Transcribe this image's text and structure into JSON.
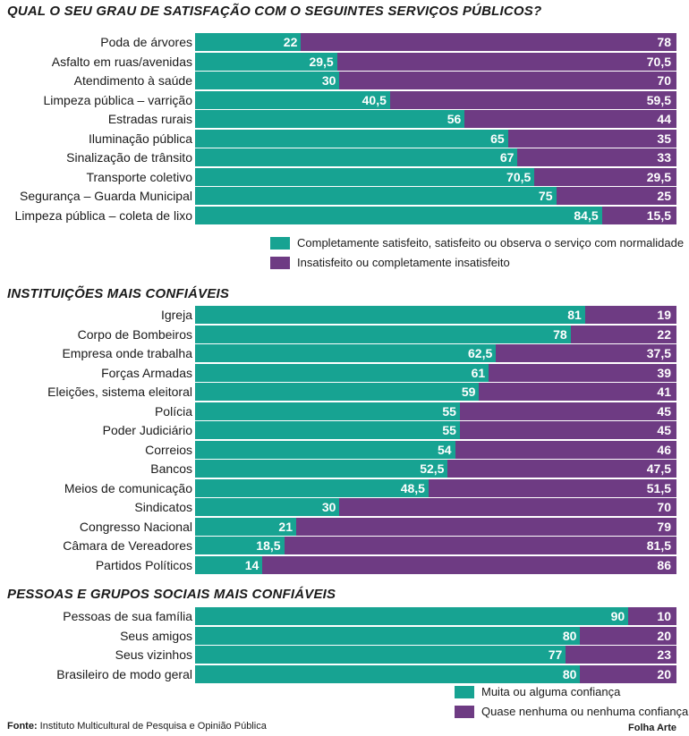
{
  "colors": {
    "satisfied": "#17a392",
    "unsatisfied": "#6e3b83"
  },
  "chart_data": [
    {
      "type": "bar",
      "orientation": "horizontal",
      "stacked": true,
      "title": "QUAL O SEU GRAU DE SATISFAÇÃO COM O SEGUINTES SERVIÇOS PÚBLICOS?",
      "categories": [
        "Poda de árvores",
        "Asfalto em ruas/avenidas",
        "Atendimento à saúde",
        "Limpeza pública – varrição",
        "Estradas rurais",
        "Iluminação pública",
        "Sinalização de trânsito",
        "Transporte coletivo",
        "Segurança – Guarda Municipal",
        "Limpeza pública – coleta de lixo"
      ],
      "series": [
        {
          "name": "Completamente satisfeito, satisfeito ou observa o serviço com normalidade",
          "values": [
            22,
            29.5,
            30,
            40.5,
            56,
            65,
            67,
            70.5,
            75,
            84.5
          ]
        },
        {
          "name": "Insatisfeito ou completamente insatisfeito",
          "values": [
            78,
            70.5,
            70,
            59.5,
            44,
            35,
            33,
            29.5,
            25,
            15.5
          ]
        }
      ],
      "xlim": [
        0,
        100
      ],
      "legend": "bottom-right"
    },
    {
      "type": "bar",
      "orientation": "horizontal",
      "stacked": true,
      "title": "INSTITUIÇÕES MAIS CONFIÁVEIS",
      "categories": [
        "Igreja",
        "Corpo de Bombeiros",
        "Empresa onde trabalha",
        "Forças Armadas",
        "Eleições, sistema eleitoral",
        "Polícia",
        "Poder Judiciário",
        "Correios",
        "Bancos",
        "Meios de comunicação",
        "Sindicatos",
        "Congresso Nacional",
        "Câmara de Vereadores",
        "Partidos Políticos"
      ],
      "series": [
        {
          "name": "Muita ou alguma confiança",
          "values": [
            81,
            78,
            62.5,
            61,
            59,
            55,
            55,
            54,
            52.5,
            48.5,
            30,
            21,
            18.5,
            14
          ]
        },
        {
          "name": "Quase nenhuma ou nenhuma confiança",
          "values": [
            19,
            22,
            37.5,
            39,
            41,
            45,
            45,
            46,
            47.5,
            51.5,
            70,
            79,
            81.5,
            86
          ]
        }
      ],
      "xlim": [
        0,
        100
      ]
    },
    {
      "type": "bar",
      "orientation": "horizontal",
      "stacked": true,
      "title": "PESSOAS E GRUPOS SOCIAIS MAIS CONFIÁVEIS",
      "categories": [
        "Pessoas de sua família",
        "Seus amigos",
        "Seus vizinhos",
        "Brasileiro de modo geral"
      ],
      "series": [
        {
          "name": "Muita ou alguma confiança",
          "values": [
            90,
            80,
            77,
            80
          ]
        },
        {
          "name": "Quase nenhuma ou nenhuma confiança",
          "values": [
            10,
            20,
            23,
            20
          ]
        }
      ],
      "xlim": [
        0,
        100
      ],
      "legend": "bottom-right"
    }
  ],
  "footer": {
    "source_label": "Fonte:",
    "source_text": "Instituto Multicultural de Pesquisa e Opinião Pública",
    "credit": "Folha Arte"
  }
}
